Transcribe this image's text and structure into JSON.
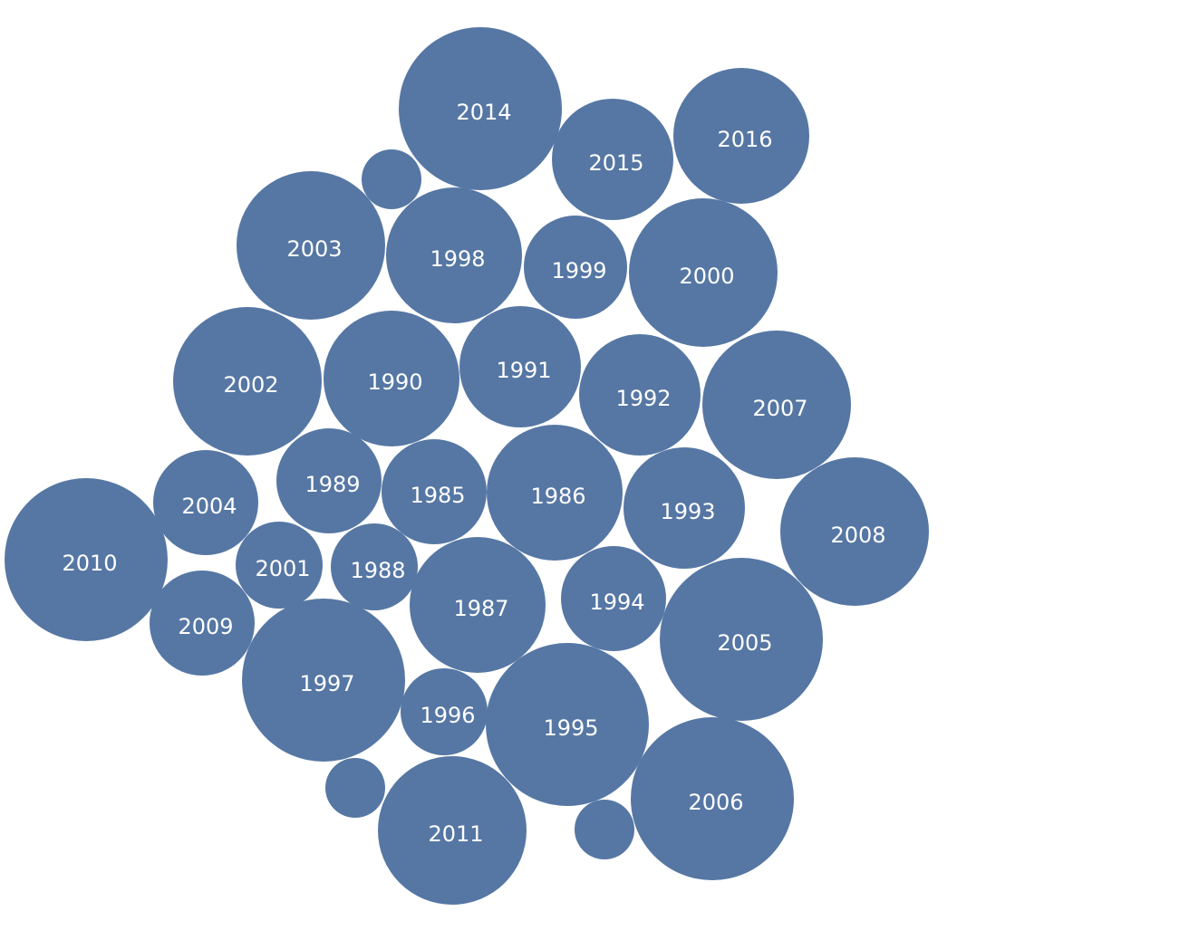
{
  "colors": {
    "bubble": "#5677a4",
    "label": "#ffffff",
    "background": "#ffffff"
  },
  "chart_data": {
    "type": "packed-bubble",
    "title": "",
    "bubbles": [
      {
        "label": "2014",
        "value": 90
      },
      {
        "label": "2015",
        "value": 67
      },
      {
        "label": "2016",
        "value": 75
      },
      {
        "label": "",
        "value": 33
      },
      {
        "label": "2003",
        "value": 82
      },
      {
        "label": "1998",
        "value": 75
      },
      {
        "label": "1999",
        "value": 57
      },
      {
        "label": "2000",
        "value": 82
      },
      {
        "label": "2002",
        "value": 82
      },
      {
        "label": "1990",
        "value": 75
      },
      {
        "label": "1991",
        "value": 67
      },
      {
        "label": "1992",
        "value": 67
      },
      {
        "label": "2007",
        "value": 82
      },
      {
        "label": "2004",
        "value": 58
      },
      {
        "label": "1989",
        "value": 58
      },
      {
        "label": "1985",
        "value": 58
      },
      {
        "label": "1986",
        "value": 75
      },
      {
        "label": "1993",
        "value": 67
      },
      {
        "label": "2008",
        "value": 82
      },
      {
        "label": "2010",
        "value": 90
      },
      {
        "label": "2001",
        "value": 48
      },
      {
        "label": "1988",
        "value": 48
      },
      {
        "label": "1987",
        "value": 75
      },
      {
        "label": "1994",
        "value": 58
      },
      {
        "label": "2005",
        "value": 90
      },
      {
        "label": "2009",
        "value": 58
      },
      {
        "label": "1997",
        "value": 90
      },
      {
        "label": "1996",
        "value": 48
      },
      {
        "label": "1995",
        "value": 90
      },
      {
        "label": "2006",
        "value": 90
      },
      {
        "label": "",
        "value": 33
      },
      {
        "label": "2011",
        "value": 82
      },
      {
        "label": "",
        "value": 33
      }
    ]
  }
}
